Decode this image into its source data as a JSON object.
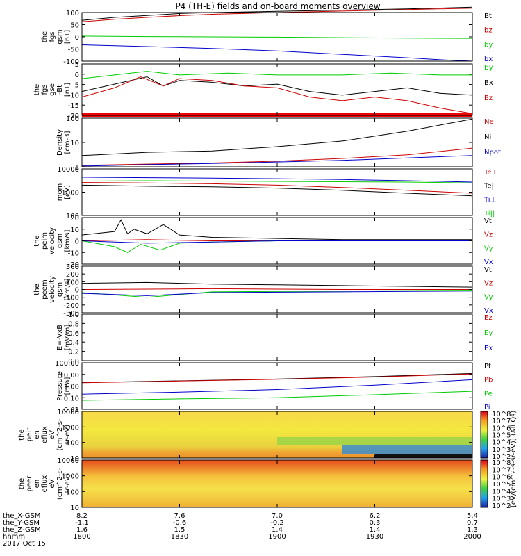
{
  "title": "P4 (TH-E) fields and on-board moments overview",
  "footer": {
    "rows": [
      {
        "label": "the_X-GSM",
        "values": [
          "8.2",
          "7.6",
          "7.0",
          "6.2",
          "5.4"
        ]
      },
      {
        "label": "the_Y-GSM",
        "values": [
          "-1.1",
          "-0.6",
          "-0.2",
          "0.3",
          "0.7"
        ]
      },
      {
        "label": "the_Z-GSM",
        "values": [
          "1.6",
          "1.5",
          "1.4",
          "1.4",
          "1.3"
        ]
      },
      {
        "label": "hhmm",
        "values": [
          "1800",
          "1830",
          "1900",
          "1930",
          "2000"
        ]
      }
    ],
    "date": "2017 Oct 15"
  },
  "colorbar_unit": "[eV/(cm^2-s-sr-eV)] (All Qs)",
  "chart_data": [
    {
      "id": "fgs_gsm",
      "type": "line",
      "ylabel": [
        "the",
        "fgs",
        "gsm",
        "[nT]"
      ],
      "ylim": [
        -100,
        100
      ],
      "yticks": [
        "100",
        "50",
        "0",
        "-50",
        "-100"
      ],
      "legend": [
        {
          "label": "Bt",
          "color": "#000000"
        },
        {
          "label": "bz",
          "color": "#cc0000"
        },
        {
          "label": "by",
          "color": "#00cc00"
        },
        {
          "label": "bx",
          "color": "#0000cc"
        }
      ],
      "series": [
        {
          "name": "Bt",
          "color": "#000000",
          "x": [
            0,
            10,
            20,
            30,
            40,
            60,
            80,
            100,
            120
          ],
          "y": [
            68,
            80,
            88,
            96,
            100,
            105,
            110,
            115,
            122
          ]
        },
        {
          "name": "bz",
          "color": "#cc0000",
          "x": [
            0,
            10,
            20,
            30,
            40,
            60,
            80,
            100,
            120
          ],
          "y": [
            62,
            72,
            80,
            87,
            93,
            100,
            106,
            112,
            118
          ]
        },
        {
          "name": "by",
          "color": "#00cc00",
          "x": [
            0,
            20,
            40,
            60,
            80,
            100,
            120
          ],
          "y": [
            3,
            1,
            0,
            -1,
            -3,
            -5,
            -6
          ]
        },
        {
          "name": "bx",
          "color": "#0000cc",
          "x": [
            0,
            20,
            40,
            60,
            80,
            100,
            110,
            120
          ],
          "y": [
            -33,
            -40,
            -48,
            -58,
            -72,
            -86,
            -94,
            -100
          ]
        }
      ]
    },
    {
      "id": "fgs_gse",
      "type": "line",
      "ylabel": [
        "the",
        "fgs",
        "gse",
        "-Bt",
        "[nT]"
      ],
      "ylim": [
        -23,
        5
      ],
      "yticks": [
        "5",
        "0",
        "-5",
        "-10",
        "-15",
        "-20"
      ],
      "legend": [
        {
          "label": "By",
          "color": "#00cc00"
        },
        {
          "label": "Bx",
          "color": "#000000"
        },
        {
          "label": "Bz",
          "color": "#cc0000"
        }
      ],
      "series": [
        {
          "name": "By",
          "color": "#00cc00",
          "x": [
            0,
            10,
            20,
            30,
            45,
            60,
            80,
            95,
            110,
            120
          ],
          "y": [
            -3,
            -1,
            1,
            -1,
            0,
            -1,
            -1,
            0,
            -1,
            -1
          ]
        },
        {
          "name": "Bx",
          "color": "#000000",
          "x": [
            0,
            10,
            20,
            25,
            30,
            40,
            50,
            60,
            70,
            80,
            90,
            100,
            110,
            120
          ],
          "y": [
            -10,
            -6,
            -2,
            -7,
            -4,
            -5,
            -7,
            -6,
            -10,
            -12,
            -10,
            -8,
            -11,
            -12
          ]
        },
        {
          "name": "Bz",
          "color": "#cc0000",
          "x": [
            0,
            10,
            18,
            25,
            30,
            40,
            50,
            60,
            70,
            80,
            90,
            100,
            110,
            120
          ],
          "y": [
            -13,
            -8,
            -2,
            -7,
            -3,
            -4,
            -7,
            -8,
            -13,
            -15,
            -13,
            -15,
            -19,
            -22
          ]
        }
      ]
    },
    {
      "id": "density",
      "type": "line",
      "ylabel": [
        "Density",
        "[cm-3]"
      ],
      "ylog": true,
      "ylim": [
        0.5,
        200
      ],
      "yticks": [
        "100",
        "10",
        "1"
      ],
      "legend": [
        {
          "label": "Ne",
          "color": "#cc0000"
        },
        {
          "label": "Ni",
          "color": "#000000"
        },
        {
          "label": "Npot",
          "color": "#0000cc"
        }
      ],
      "series": [
        {
          "name": "Ni",
          "color": "#000000",
          "x": [
            0,
            20,
            40,
            60,
            80,
            100,
            120
          ],
          "y": [
            2,
            3,
            3.5,
            6,
            12,
            40,
            180
          ]
        },
        {
          "name": "Ne",
          "color": "#cc0000",
          "x": [
            0,
            20,
            40,
            60,
            80,
            100,
            120
          ],
          "y": [
            0.6,
            0.7,
            0.8,
            1,
            1.4,
            2.2,
            5
          ]
        },
        {
          "name": "Npot",
          "color": "#0000cc",
          "x": [
            0,
            20,
            40,
            60,
            80,
            100,
            120
          ],
          "y": [
            0.55,
            0.65,
            0.75,
            0.9,
            1.1,
            1.5,
            2
          ]
        }
      ]
    },
    {
      "id": "temp",
      "type": "line",
      "ylabel": [
        "mom",
        "[eV]"
      ],
      "ylog": true,
      "ylim": [
        100,
        10000
      ],
      "yticks": [
        "10000",
        "1000",
        "100"
      ],
      "legend": [
        {
          "label": "Te⊥",
          "color": "#cc0000"
        },
        {
          "label": "Te||",
          "color": "#000000"
        },
        {
          "label": "Ti⊥",
          "color": "#0000cc"
        },
        {
          "label": "Ti||",
          "color": "#00cc00"
        }
      ],
      "series": [
        {
          "name": "Ti⊥",
          "color": "#0000cc",
          "x": [
            0,
            20,
            40,
            60,
            80,
            100,
            120
          ],
          "y": [
            4400,
            4200,
            4000,
            3800,
            3500,
            3100,
            2700
          ]
        },
        {
          "name": "Ti||",
          "color": "#00cc00",
          "x": [
            0,
            20,
            40,
            60,
            80,
            100,
            120
          ],
          "y": [
            3000,
            3100,
            3000,
            2900,
            2800,
            2700,
            2500
          ]
        },
        {
          "name": "Te⊥",
          "color": "#cc0000",
          "x": [
            0,
            20,
            40,
            60,
            80,
            100,
            120
          ],
          "y": [
            2600,
            2500,
            2300,
            2000,
            1600,
            1200,
            900
          ]
        },
        {
          "name": "Te||",
          "color": "#000000",
          "x": [
            0,
            20,
            40,
            60,
            80,
            100,
            120
          ],
          "y": [
            2000,
            1800,
            1700,
            1500,
            1200,
            900,
            700
          ]
        }
      ]
    },
    {
      "id": "peim_vel",
      "type": "line",
      "ylabel": [
        "the",
        "peim",
        "velocity",
        "gsm",
        "[km/s]"
      ],
      "ylim": [
        -20,
        20
      ],
      "yticks": [
        "20",
        "10",
        "0",
        "-10",
        "-20"
      ],
      "legend": [
        {
          "label": "Vt",
          "color": "#000000"
        },
        {
          "label": "Vz",
          "color": "#cc0000"
        },
        {
          "label": "Vy",
          "color": "#00cc00"
        },
        {
          "label": "Vx",
          "color": "#0000cc"
        }
      ],
      "series": [
        {
          "name": "Vt",
          "color": "#000000",
          "x": [
            0,
            10,
            12,
            14,
            16,
            20,
            25,
            30,
            40,
            60,
            80,
            120
          ],
          "y": [
            5,
            8,
            18,
            6,
            10,
            6,
            14,
            5,
            3,
            2,
            1,
            1
          ]
        },
        {
          "name": "Vz",
          "color": "#cc0000",
          "x": [
            0,
            20,
            40,
            60,
            120
          ],
          "y": [
            0,
            1,
            0,
            0,
            0
          ]
        },
        {
          "name": "Vy",
          "color": "#00cc00",
          "x": [
            0,
            10,
            14,
            18,
            24,
            30,
            40,
            60,
            120
          ],
          "y": [
            0,
            -5,
            -10,
            -3,
            -8,
            -2,
            -1,
            0,
            0
          ]
        },
        {
          "name": "Vx",
          "color": "#0000cc",
          "x": [
            0,
            20,
            40,
            60,
            120
          ],
          "y": [
            0,
            -2,
            -1,
            0,
            0
          ]
        }
      ]
    },
    {
      "id": "peem_vel",
      "type": "line",
      "ylabel": [
        "the",
        "peem",
        "velocity",
        "gsm",
        "[km/s]"
      ],
      "ylim": [
        -300,
        300
      ],
      "yticks": [
        "300",
        "200",
        "100",
        "0",
        "-100",
        "-200",
        "-300"
      ],
      "legend": [
        {
          "label": "Vt",
          "color": "#000000"
        },
        {
          "label": "Vz",
          "color": "#cc0000"
        },
        {
          "label": "Vy",
          "color": "#00cc00"
        },
        {
          "label": "Vx",
          "color": "#0000cc"
        }
      ],
      "series": [
        {
          "name": "Vt",
          "color": "#000000",
          "x": [
            0,
            20,
            40,
            60,
            80,
            100,
            120
          ],
          "y": [
            80,
            90,
            70,
            60,
            50,
            40,
            30
          ]
        },
        {
          "name": "Vz",
          "color": "#cc0000",
          "x": [
            0,
            40,
            80,
            120
          ],
          "y": [
            0,
            10,
            0,
            0
          ]
        },
        {
          "name": "Vy",
          "color": "#00cc00",
          "x": [
            0,
            20,
            40,
            80,
            120
          ],
          "y": [
            -40,
            -100,
            -30,
            -20,
            -10
          ]
        },
        {
          "name": "Vx",
          "color": "#0000cc",
          "x": [
            0,
            20,
            40,
            80,
            120
          ],
          "y": [
            -50,
            -80,
            -40,
            -30,
            -20
          ]
        }
      ]
    },
    {
      "id": "efield",
      "type": "line",
      "ylabel": [
        "E=-VxB",
        "[mV/m]"
      ],
      "ylim": [
        0,
        1
      ],
      "yticks": [
        "1.0",
        "0.8",
        "0.6",
        "0.4",
        "0.2",
        "0.0"
      ],
      "legend": [
        {
          "label": "Ez",
          "color": "#cc0000"
        },
        {
          "label": "Ey",
          "color": "#00cc00"
        },
        {
          "label": "Ex",
          "color": "#0000cc"
        }
      ],
      "series": []
    },
    {
      "id": "pressure",
      "type": "line",
      "ylabel": [
        "Pressure",
        "[nPa]"
      ],
      "ylog": true,
      "ylim": [
        0.01,
        100
      ],
      "yticks": [
        "100.00",
        "10.00",
        "1.00",
        "0.10",
        "0.01"
      ],
      "legend": [
        {
          "label": "Pt",
          "color": "#000000"
        },
        {
          "label": "Pb",
          "color": "#cc0000"
        },
        {
          "label": "Pe",
          "color": "#00cc00"
        },
        {
          "label": "Pi",
          "color": "#0000cc"
        }
      ],
      "series": [
        {
          "name": "Pt",
          "color": "#000000",
          "x": [
            0,
            30,
            60,
            90,
            120
          ],
          "y": [
            2,
            2.8,
            4,
            6.5,
            12
          ]
        },
        {
          "name": "Pb",
          "color": "#cc0000",
          "x": [
            0,
            30,
            60,
            90,
            120
          ],
          "y": [
            1.9,
            2.7,
            3.8,
            6,
            11
          ]
        },
        {
          "name": "Pe",
          "color": "#00cc00",
          "x": [
            0,
            30,
            60,
            90,
            120
          ],
          "y": [
            0.06,
            0.08,
            0.1,
            0.18,
            0.35
          ]
        },
        {
          "name": "Pi",
          "color": "#0000cc",
          "x": [
            0,
            30,
            60,
            90,
            120
          ],
          "y": [
            0.2,
            0.3,
            0.5,
            1.2,
            3.5
          ]
        }
      ]
    },
    {
      "id": "peir_eflux",
      "type": "heatmap",
      "ylabel": [
        "the",
        "peir",
        "en",
        "eflux",
        "eV",
        "(cm^2-s-",
        "sr-eV)"
      ],
      "ylog": true,
      "ylim": [
        8,
        20000
      ],
      "yticks": [
        "10000",
        "1000",
        "100",
        "10"
      ],
      "colorbar": [
        "10^8",
        "10^7",
        "10^6",
        "10^5",
        "10^4",
        "10^3",
        "10^2"
      ]
    },
    {
      "id": "peer_eflux",
      "type": "heatmap",
      "ylabel": [
        "the",
        "peer",
        "en",
        "eflux",
        "eV",
        "(cm^2-s-",
        "sr-eV)"
      ],
      "ylog": true,
      "ylim": [
        8,
        20000
      ],
      "yticks": [
        "10000",
        "1000",
        "100",
        "10"
      ],
      "colorbar": [
        "10^8",
        "10^7",
        "10^6",
        "10^5",
        "10^4",
        "10^3",
        "10^2"
      ]
    }
  ]
}
